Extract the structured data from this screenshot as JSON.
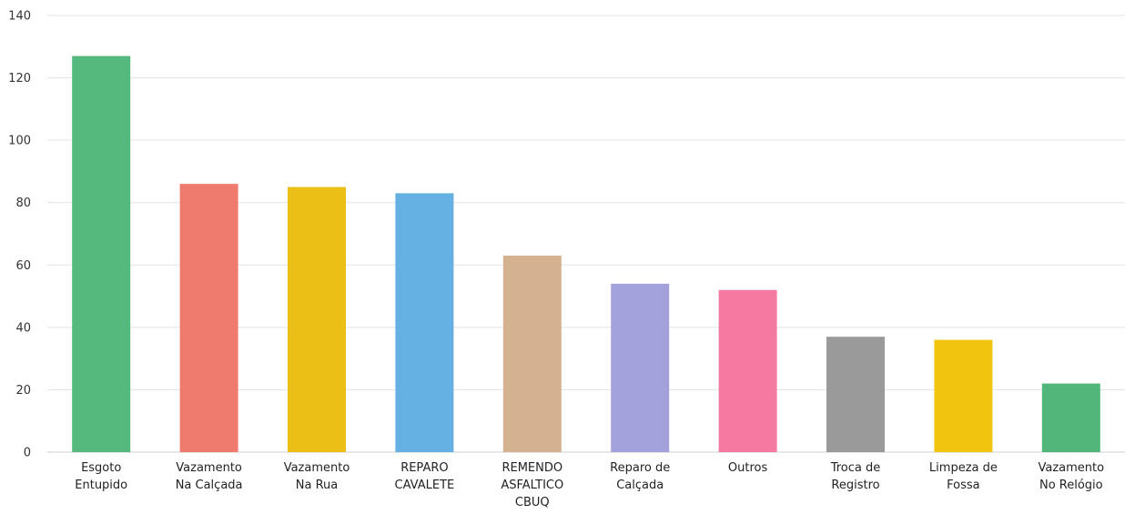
{
  "chart_data": {
    "type": "bar",
    "title": "",
    "xlabel": "",
    "ylabel": "",
    "ylim": [
      0,
      140
    ],
    "yticks": [
      0,
      20,
      40,
      60,
      80,
      100,
      120,
      140
    ],
    "grid": true,
    "legend": "none",
    "categories": [
      [
        "Esgoto",
        "Entupido"
      ],
      [
        "Vazamento",
        "Na Calçada"
      ],
      [
        "Vazamento",
        "Na Rua"
      ],
      [
        "REPARO",
        "CAVALETE"
      ],
      [
        "REMENDO",
        "ASFALTICO",
        "CBUQ"
      ],
      [
        "Reparo de",
        "Calçada"
      ],
      [
        "Outros"
      ],
      [
        "Troca de",
        "Registro"
      ],
      [
        "Limpeza de",
        "Fossa"
      ],
      [
        "Vazamento",
        "No Relógio"
      ]
    ],
    "values": [
      127,
      86,
      85,
      83,
      63,
      54,
      52,
      37,
      36,
      22
    ],
    "colors": [
      "#55b87c",
      "#ef7a6e",
      "#ebbf15",
      "#65b0e2",
      "#d4b18f",
      "#a3a1dc",
      "#f47aa2",
      "#9a9a9a",
      "#f1c40f",
      "#52b67a"
    ]
  }
}
